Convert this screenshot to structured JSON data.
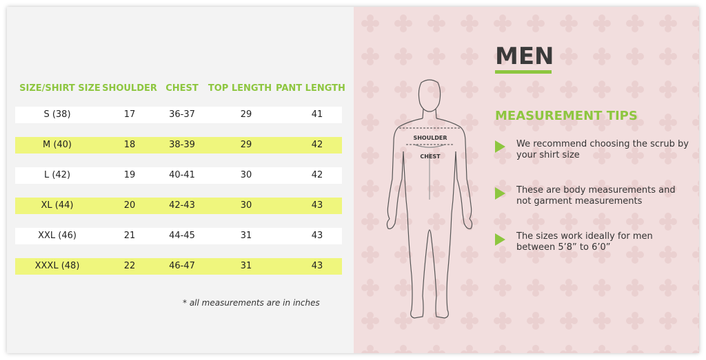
{
  "table": {
    "headers": [
      "SIZE/SHIRT SIZE",
      "SHOULDER",
      "CHEST",
      "TOP LENGTH",
      "PANT LENGTH"
    ],
    "rows": [
      [
        "S  (38)",
        "17",
        "36-37",
        "29",
        "41"
      ],
      [
        "M  (40)",
        "18",
        "38-39",
        "29",
        "42"
      ],
      [
        "L  (42)",
        "19",
        "40-41",
        "30",
        "42"
      ],
      [
        "XL  (44)",
        "20",
        "42-43",
        "30",
        "43"
      ],
      [
        "XXL  (46)",
        "21",
        "44-45",
        "31",
        "43"
      ],
      [
        "XXXL  (48)",
        "22",
        "46-47",
        "31",
        "43"
      ]
    ],
    "note": "* all measurements are in inches"
  },
  "panel": {
    "title": "MEN",
    "figure_labels": {
      "shoulder": "SHOULDER",
      "chest": "CHEST"
    },
    "tips_title": "MEASUREMENT TIPS",
    "tips": [
      "We recommend choosing the scrub by your shirt size",
      "These are body measurements and not garment measurements",
      "The sizes work ideally for men between 5’8” to 6’0”"
    ]
  },
  "colors": {
    "accent_green": "#8dc63f",
    "highlight_row": "#eff67d",
    "panel_pink": "#f2dede"
  }
}
